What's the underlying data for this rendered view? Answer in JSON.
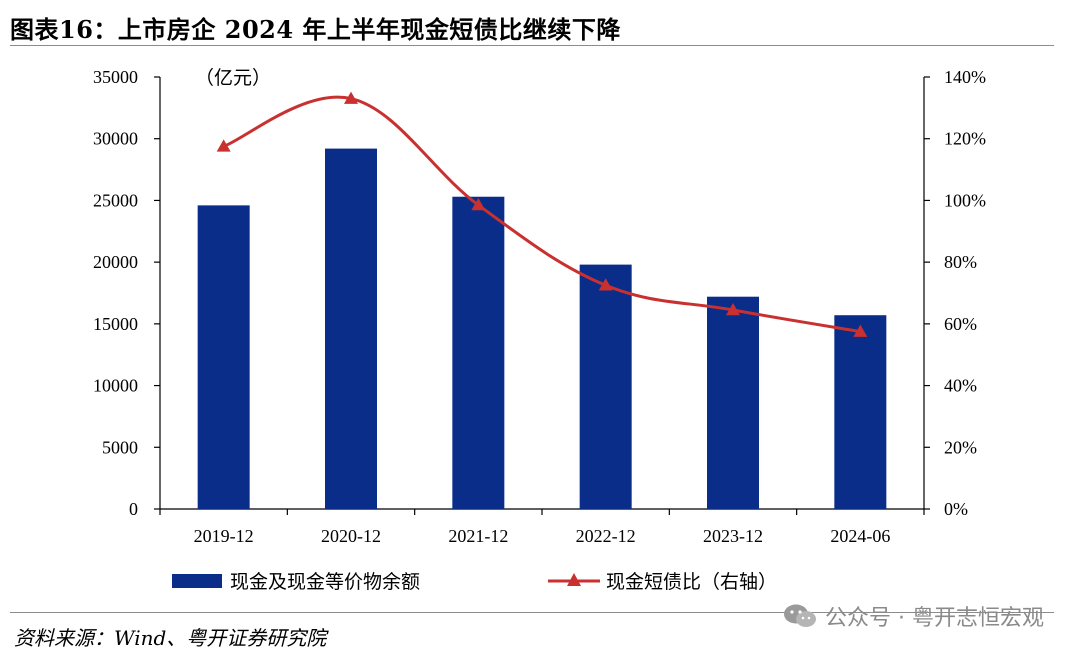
{
  "title": "图表16：上市房企 2024 年上半年现金短债比继续下降",
  "source": "资料来源：Wind、粤开证券研究院",
  "watermark": "公众号 · 粤开志恒宏观",
  "colors": {
    "bar": "#0a2d8a",
    "line": "#c8312f",
    "axis": "#000000"
  },
  "chart_data": {
    "type": "bar",
    "categories": [
      "2019-12",
      "2020-12",
      "2021-12",
      "2022-12",
      "2023-12",
      "2024-06"
    ],
    "left_unit": "（亿元）",
    "y_left": {
      "min": 0,
      "max": 35000,
      "ticks": [
        "0",
        "5000",
        "10000",
        "15000",
        "20000",
        "25000",
        "30000",
        "35000"
      ]
    },
    "y_right": {
      "min": 0,
      "max": 140,
      "ticks": [
        "0%",
        "20%",
        "40%",
        "60%",
        "80%",
        "100%",
        "120%",
        "140%"
      ]
    },
    "series": [
      {
        "name": "现金及现金等价物余额",
        "type": "bar",
        "axis": "left",
        "values": [
          24600,
          29200,
          25300,
          19800,
          17200,
          15700
        ]
      },
      {
        "name": "现金短债比（右轴）",
        "type": "line",
        "axis": "right",
        "marker": "triangle",
        "values": [
          117.5,
          133,
          98.5,
          72.5,
          64.5,
          57.5
        ]
      }
    ],
    "legend": "bottom"
  }
}
